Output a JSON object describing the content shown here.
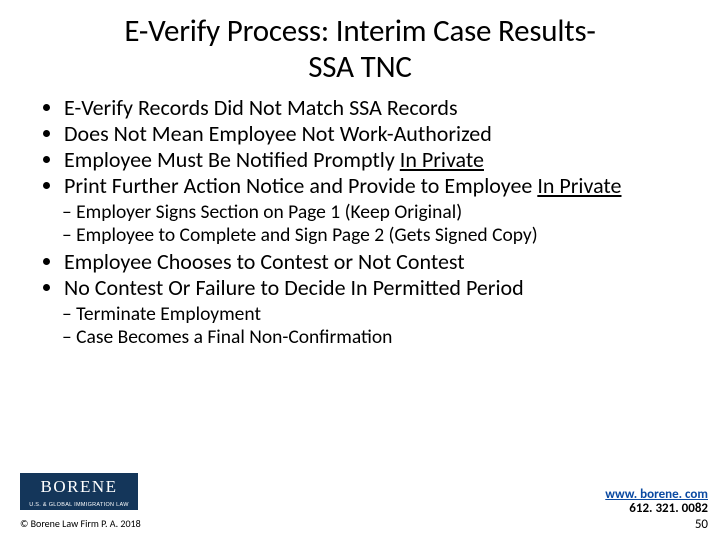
{
  "title_line1": "E-Verify Process: Interim Case Results-",
  "title_line2": "SSA TNC",
  "bullets1": {
    "b0": "E-Verify Records Did Not Match SSA Records",
    "b1": "Does Not Mean Employee Not Work-Authorized",
    "b2_pre": "Employee Must Be Notified Promptly ",
    "b2_u": "In Private",
    "b3_pre": "Print  Further Action Notice and Provide to Employee ",
    "b3_u": "In Private"
  },
  "sub1": {
    "s0": "Employer Signs Section on Page 1 (Keep Original)",
    "s1": "Employee to Complete and Sign Page 2 (Gets Signed Copy)"
  },
  "bullets2": {
    "b0": "Employee Chooses to Contest or Not Contest",
    "b1": "No Contest Or Failure to Decide In Permitted Period"
  },
  "sub2": {
    "s0": "Terminate Employment",
    "s1": "Case Becomes a Final Non-Confirmation"
  },
  "logo": {
    "main": "BORENE",
    "sub": "U.S. & GLOBAL IMMIGRATION LAW"
  },
  "footer": {
    "copyright": "© Borene Law Firm P. A. 2018",
    "website": "www. borene. com",
    "phone": "612. 321. 0082",
    "page": "50"
  },
  "colors": {
    "brand": "#14365a",
    "link": "#0b4aa2",
    "text": "#000000",
    "bg": "#ffffff"
  }
}
